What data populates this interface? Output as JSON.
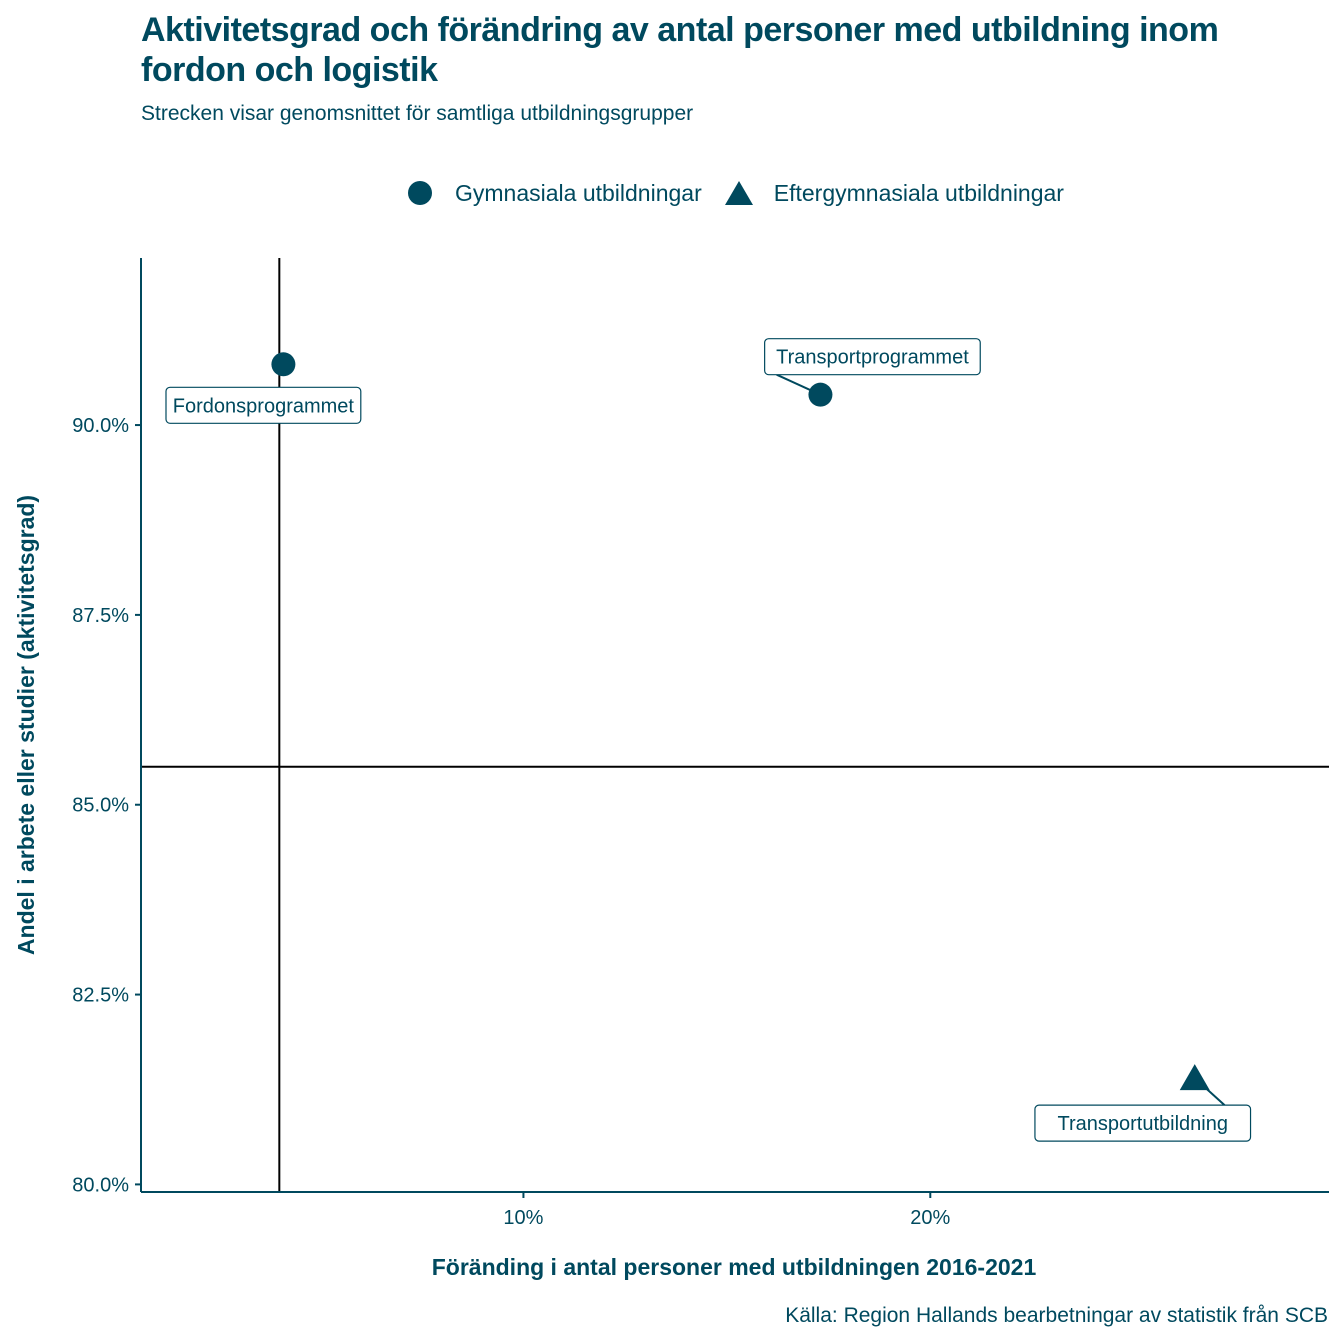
{
  "header": {
    "title": "Aktivitetsgrad och förändring av antal personer med utbildning inom fordon och logistik",
    "subtitle": "Strecken visar genomsnittet för samtliga utbildningsgrupper",
    "caption": "Källa: Region Hallands bearbetningar av statistik från SCB"
  },
  "legend": {
    "items": [
      {
        "label": "Gymnasiala utbildningar",
        "shape": "circle"
      },
      {
        "label": "Eftergymnasiala utbildningar",
        "shape": "triangle"
      }
    ]
  },
  "colors": {
    "accent": "#00495e",
    "reference_line": "#000000",
    "label_border": "#00495e"
  },
  "chart_data": {
    "type": "scatter",
    "xlabel": "Föränding i antal personer med utbildningen 2016-2021",
    "ylabel": "Andel i arbete eller studier (aktivitetsgrad)",
    "xlim": [
      0.6,
      29.8
    ],
    "ylim": [
      79.9,
      92.2
    ],
    "x_ticks": [
      {
        "value": 10,
        "label": "10%"
      },
      {
        "value": 20,
        "label": "20%"
      }
    ],
    "y_ticks": [
      {
        "value": 80.0,
        "label": "80.0%"
      },
      {
        "value": 82.5,
        "label": "82.5%"
      },
      {
        "value": 85.0,
        "label": "85.0%"
      },
      {
        "value": 87.5,
        "label": "87.5%"
      },
      {
        "value": 90.0,
        "label": "90.0%"
      }
    ],
    "grid": false,
    "legend_position": "top",
    "reference_lines": {
      "x_mean": 4.0,
      "y_mean": 85.5
    },
    "series": [
      {
        "name": "Gymnasiala utbildningar",
        "shape": "circle",
        "points": [
          {
            "label": "Fordonsprogrammet",
            "x": 4.1,
            "y": 90.8
          },
          {
            "label": "Transportprogrammet",
            "x": 17.3,
            "y": 90.4
          }
        ]
      },
      {
        "name": "Eftergymnasiala utbildningar",
        "shape": "triangle",
        "points": [
          {
            "label": "Transportutbildning",
            "x": 26.5,
            "y": 81.4
          }
        ]
      }
    ]
  }
}
